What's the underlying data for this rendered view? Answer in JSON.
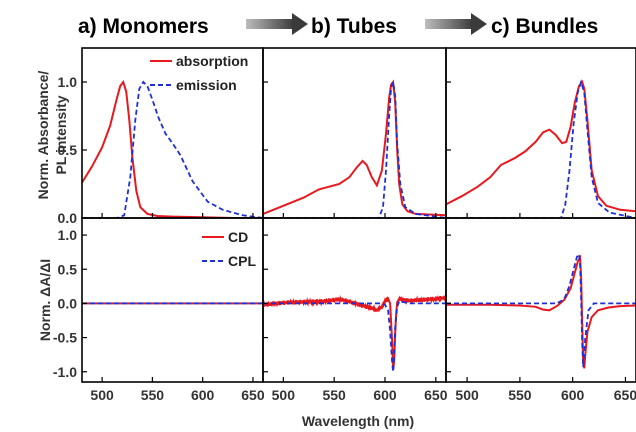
{
  "titles": {
    "a": "a)  Monomers",
    "b": "b) Tubes",
    "c": "c) Bundles"
  },
  "colors": {
    "absorption": "#e8191e",
    "emission": "#1f2fd6",
    "arrow": "#555555"
  },
  "chart_data": [
    {
      "type": "line",
      "panel": "top",
      "ylabel_line1": "Norm. Absorbance/",
      "ylabel_line2": "PL intensity",
      "xlabel": "Wavelength (nm)",
      "xlim": [
        480,
        660
      ],
      "ylim": [
        0,
        1.25
      ],
      "xticks": [
        "500",
        "550",
        "600",
        "650"
      ],
      "yticks": [
        "0.0",
        "0.5",
        "1.0"
      ],
      "legend": [
        {
          "label": "absorption",
          "style": "solid",
          "color": "#e8191e"
        },
        {
          "label": "emission",
          "style": "dashed",
          "color": "#1f2fd6"
        }
      ],
      "columns": [
        {
          "title": "a)  Monomers",
          "series": [
            {
              "name": "absorption",
              "style": "solid",
              "x": [
                480,
                490,
                500,
                508,
                514,
                518,
                521,
                524,
                527,
                530,
                534,
                538,
                545,
                555,
                570,
                600,
                630,
                660
              ],
              "y": [
                0.26,
                0.38,
                0.52,
                0.68,
                0.86,
                0.97,
                1.0,
                0.93,
                0.72,
                0.45,
                0.2,
                0.08,
                0.03,
                0.015,
                0.01,
                0.005,
                0.0,
                0.0
              ]
            },
            {
              "name": "emission",
              "style": "dashed",
              "x": [
                480,
                515,
                522,
                528,
                533,
                537,
                541,
                545,
                550,
                556,
                563,
                570,
                578,
                590,
                605,
                620,
                640,
                660
              ],
              "y": [
                0.0,
                0.0,
                0.02,
                0.3,
                0.72,
                0.95,
                1.0,
                0.97,
                0.87,
                0.74,
                0.62,
                0.55,
                0.46,
                0.27,
                0.12,
                0.06,
                0.02,
                0.0
              ]
            }
          ]
        },
        {
          "title": "b) Tubes",
          "series": [
            {
              "name": "absorption",
              "style": "solid",
              "x": [
                480,
                500,
                520,
                535,
                545,
                555,
                565,
                572,
                578,
                582,
                587,
                592,
                597,
                601,
                604,
                606,
                608,
                610,
                612,
                614,
                617,
                622,
                630,
                660
              ],
              "y": [
                0.03,
                0.09,
                0.15,
                0.21,
                0.23,
                0.25,
                0.3,
                0.37,
                0.42,
                0.39,
                0.3,
                0.24,
                0.35,
                0.62,
                0.88,
                0.98,
                1.0,
                0.85,
                0.5,
                0.25,
                0.1,
                0.05,
                0.03,
                0.02
              ]
            },
            {
              "name": "emission",
              "style": "dashed",
              "x": [
                480,
                594,
                598,
                601,
                604,
                606,
                608,
                610,
                612,
                615,
                620,
                630,
                660
              ],
              "y": [
                0.0,
                0.0,
                0.08,
                0.35,
                0.75,
                0.96,
                1.0,
                0.9,
                0.55,
                0.25,
                0.08,
                0.03,
                0.0
              ]
            }
          ]
        },
        {
          "title": "c) Bundles",
          "series": [
            {
              "name": "absorption",
              "style": "solid",
              "x": [
                480,
                495,
                510,
                522,
                532,
                545,
                555,
                565,
                572,
                578,
                584,
                590,
                594,
                598,
                602,
                606,
                609,
                611,
                614,
                618,
                624,
                632,
                645,
                660
              ],
              "y": [
                0.1,
                0.16,
                0.23,
                0.3,
                0.39,
                0.44,
                0.49,
                0.56,
                0.63,
                0.65,
                0.61,
                0.55,
                0.56,
                0.67,
                0.85,
                0.97,
                1.0,
                0.95,
                0.72,
                0.35,
                0.16,
                0.09,
                0.06,
                0.05
              ]
            },
            {
              "name": "emission",
              "style": "dashed",
              "x": [
                480,
                589,
                593,
                597,
                601,
                605,
                608,
                611,
                614,
                618,
                624,
                635,
                660
              ],
              "y": [
                0.0,
                0.0,
                0.1,
                0.35,
                0.7,
                0.93,
                1.0,
                0.92,
                0.65,
                0.3,
                0.11,
                0.04,
                0.0
              ]
            }
          ]
        }
      ]
    },
    {
      "type": "line",
      "panel": "bottom",
      "ylabel": "Norm. ΔA/ΔI",
      "xlabel": "Wavelength (nm)",
      "xlim": [
        480,
        660
      ],
      "ylim": [
        -1.15,
        1.25
      ],
      "xticks": [
        "500",
        "550",
        "600",
        "650"
      ],
      "yticks": [
        "-1.0",
        "-0.5",
        "0.0",
        "0.5",
        "1.0"
      ],
      "legend": [
        {
          "label": "CD",
          "style": "solid",
          "color": "#e8191e"
        },
        {
          "label": "CPL",
          "style": "dashed",
          "color": "#1f2fd6"
        }
      ],
      "columns": [
        {
          "series": [
            {
              "name": "CD",
              "style": "solid",
              "x": [
                480,
                660
              ],
              "y": [
                0.0,
                0.0
              ]
            },
            {
              "name": "CPL",
              "style": "dashed",
              "x": [
                480,
                660
              ],
              "y": [
                0.0,
                0.0
              ]
            }
          ]
        },
        {
          "series": [
            {
              "name": "CD",
              "style": "solid",
              "x": [
                480,
                500,
                520,
                540,
                555,
                565,
                575,
                585,
                592,
                597,
                600,
                603,
                605,
                607,
                608,
                609,
                610,
                611,
                612,
                614,
                618,
                625,
                635,
                645,
                660
              ],
              "y": [
                -0.02,
                0.01,
                0.02,
                0.03,
                0.06,
                0.03,
                -0.02,
                -0.06,
                -0.1,
                -0.05,
                0.04,
                0.07,
                0.0,
                -0.55,
                -0.97,
                -0.85,
                -0.45,
                -0.15,
                0.02,
                0.07,
                0.05,
                0.04,
                0.05,
                0.06,
                0.08
              ]
            },
            {
              "name": "CPL",
              "style": "dashed",
              "x": [
                480,
                596,
                600,
                603,
                605,
                607,
                608,
                609,
                610,
                612,
                614,
                618,
                625,
                660
              ],
              "y": [
                0.0,
                0.0,
                -0.02,
                -0.1,
                -0.4,
                -0.85,
                -1.0,
                -0.8,
                -0.35,
                -0.05,
                0.03,
                0.02,
                0.0,
                0.0
              ]
            }
          ]
        },
        {
          "series": [
            {
              "name": "CD",
              "style": "solid",
              "x": [
                480,
                520,
                550,
                565,
                572,
                578,
                585,
                592,
                598,
                602,
                605,
                607,
                608,
                609,
                610,
                611,
                612,
                614,
                618,
                624,
                634,
                645,
                660
              ],
              "y": [
                -0.02,
                -0.02,
                -0.03,
                -0.05,
                -0.09,
                -0.1,
                -0.04,
                0.05,
                0.22,
                0.45,
                0.62,
                0.67,
                0.4,
                -0.3,
                -0.85,
                -0.95,
                -0.75,
                -0.42,
                -0.2,
                -0.1,
                -0.06,
                -0.04,
                -0.03
              ]
            },
            {
              "name": "CPL",
              "style": "dashed",
              "x": [
                480,
                585,
                592,
                597,
                601,
                604,
                606,
                607,
                608,
                609,
                610,
                612,
                615,
                620,
                630,
                660
              ],
              "y": [
                0.0,
                0.0,
                0.06,
                0.26,
                0.5,
                0.68,
                0.72,
                0.55,
                0.1,
                -0.6,
                -0.93,
                -0.5,
                -0.1,
                0.0,
                0.0,
                0.0
              ]
            }
          ]
        }
      ]
    }
  ]
}
